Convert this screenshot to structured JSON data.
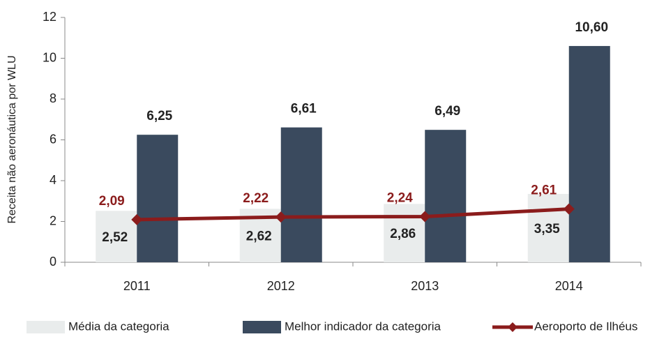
{
  "chart_data": {
    "type": "bar",
    "y_label": "Receita não aeronáutica por WLU",
    "categories": [
      "2011",
      "2012",
      "2013",
      "2014"
    ],
    "series": [
      {
        "name": "Média da categoria",
        "color": "#e9ecec",
        "values": [
          2.52,
          2.62,
          2.86,
          3.35
        ],
        "value_labels": [
          "2,52",
          "2,62",
          "2,86",
          "3,35"
        ]
      },
      {
        "name": "Melhor indicador da categoria",
        "color": "#3a4a5e",
        "values": [
          6.25,
          6.61,
          6.49,
          10.6
        ],
        "value_labels": [
          "6,25",
          "6,61",
          "6,49",
          "10,60"
        ]
      },
      {
        "name": "Aeroporto de Ilhéus",
        "color": "#8b1c1c",
        "type": "line",
        "values": [
          2.09,
          2.22,
          2.24,
          2.61
        ],
        "value_labels": [
          "2,09",
          "2,22",
          "2,24",
          "2,61"
        ]
      }
    ],
    "ylim": [
      0,
      12
    ],
    "yticks": [
      0,
      2,
      4,
      6,
      8,
      10,
      12
    ],
    "legend": "bottom"
  }
}
